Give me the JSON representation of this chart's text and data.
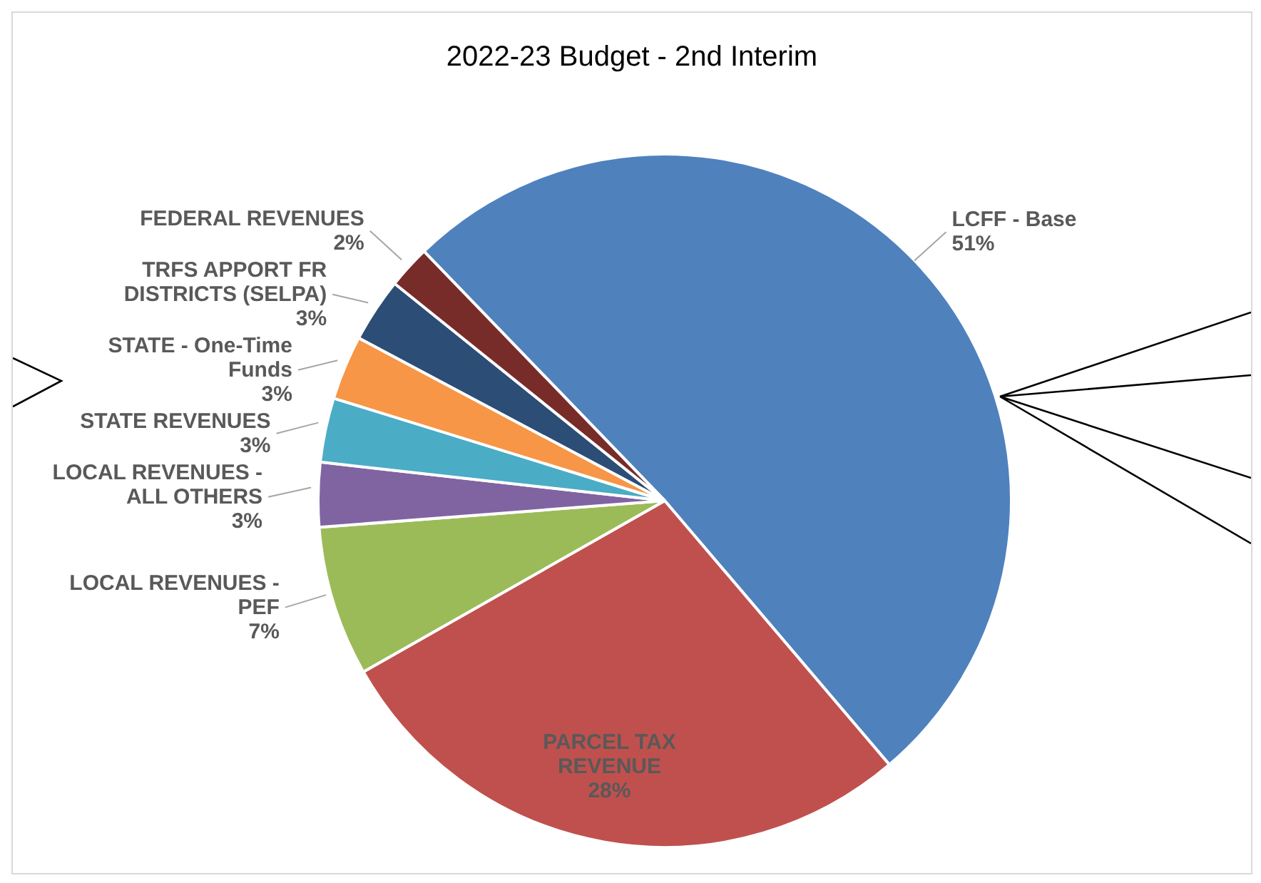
{
  "chart_data": {
    "type": "pie",
    "title": "2022-23 Budget - 2nd Interim",
    "categories": [
      "LCFF - Base",
      "PARCEL TAX REVENUE",
      "LOCAL REVENUES - PEF",
      "LOCAL REVENUES - ALL OTHERS",
      "STATE REVENUES",
      "STATE - One-Time Funds",
      "TRFS APPORT FR DISTRICTS (SELPA)",
      "FEDERAL REVENUES"
    ],
    "values": [
      51,
      28,
      7,
      3,
      3,
      3,
      3,
      2
    ],
    "colors": [
      "#4f81bd",
      "#c0504d",
      "#9bbb59",
      "#8064a2",
      "#4bacc6",
      "#f79646",
      "#2c4d75",
      "#772c2a"
    ],
    "value_labels": [
      "51%",
      "28%",
      "7%",
      "3%",
      "3%",
      "3%",
      "3%",
      "2%"
    ]
  }
}
